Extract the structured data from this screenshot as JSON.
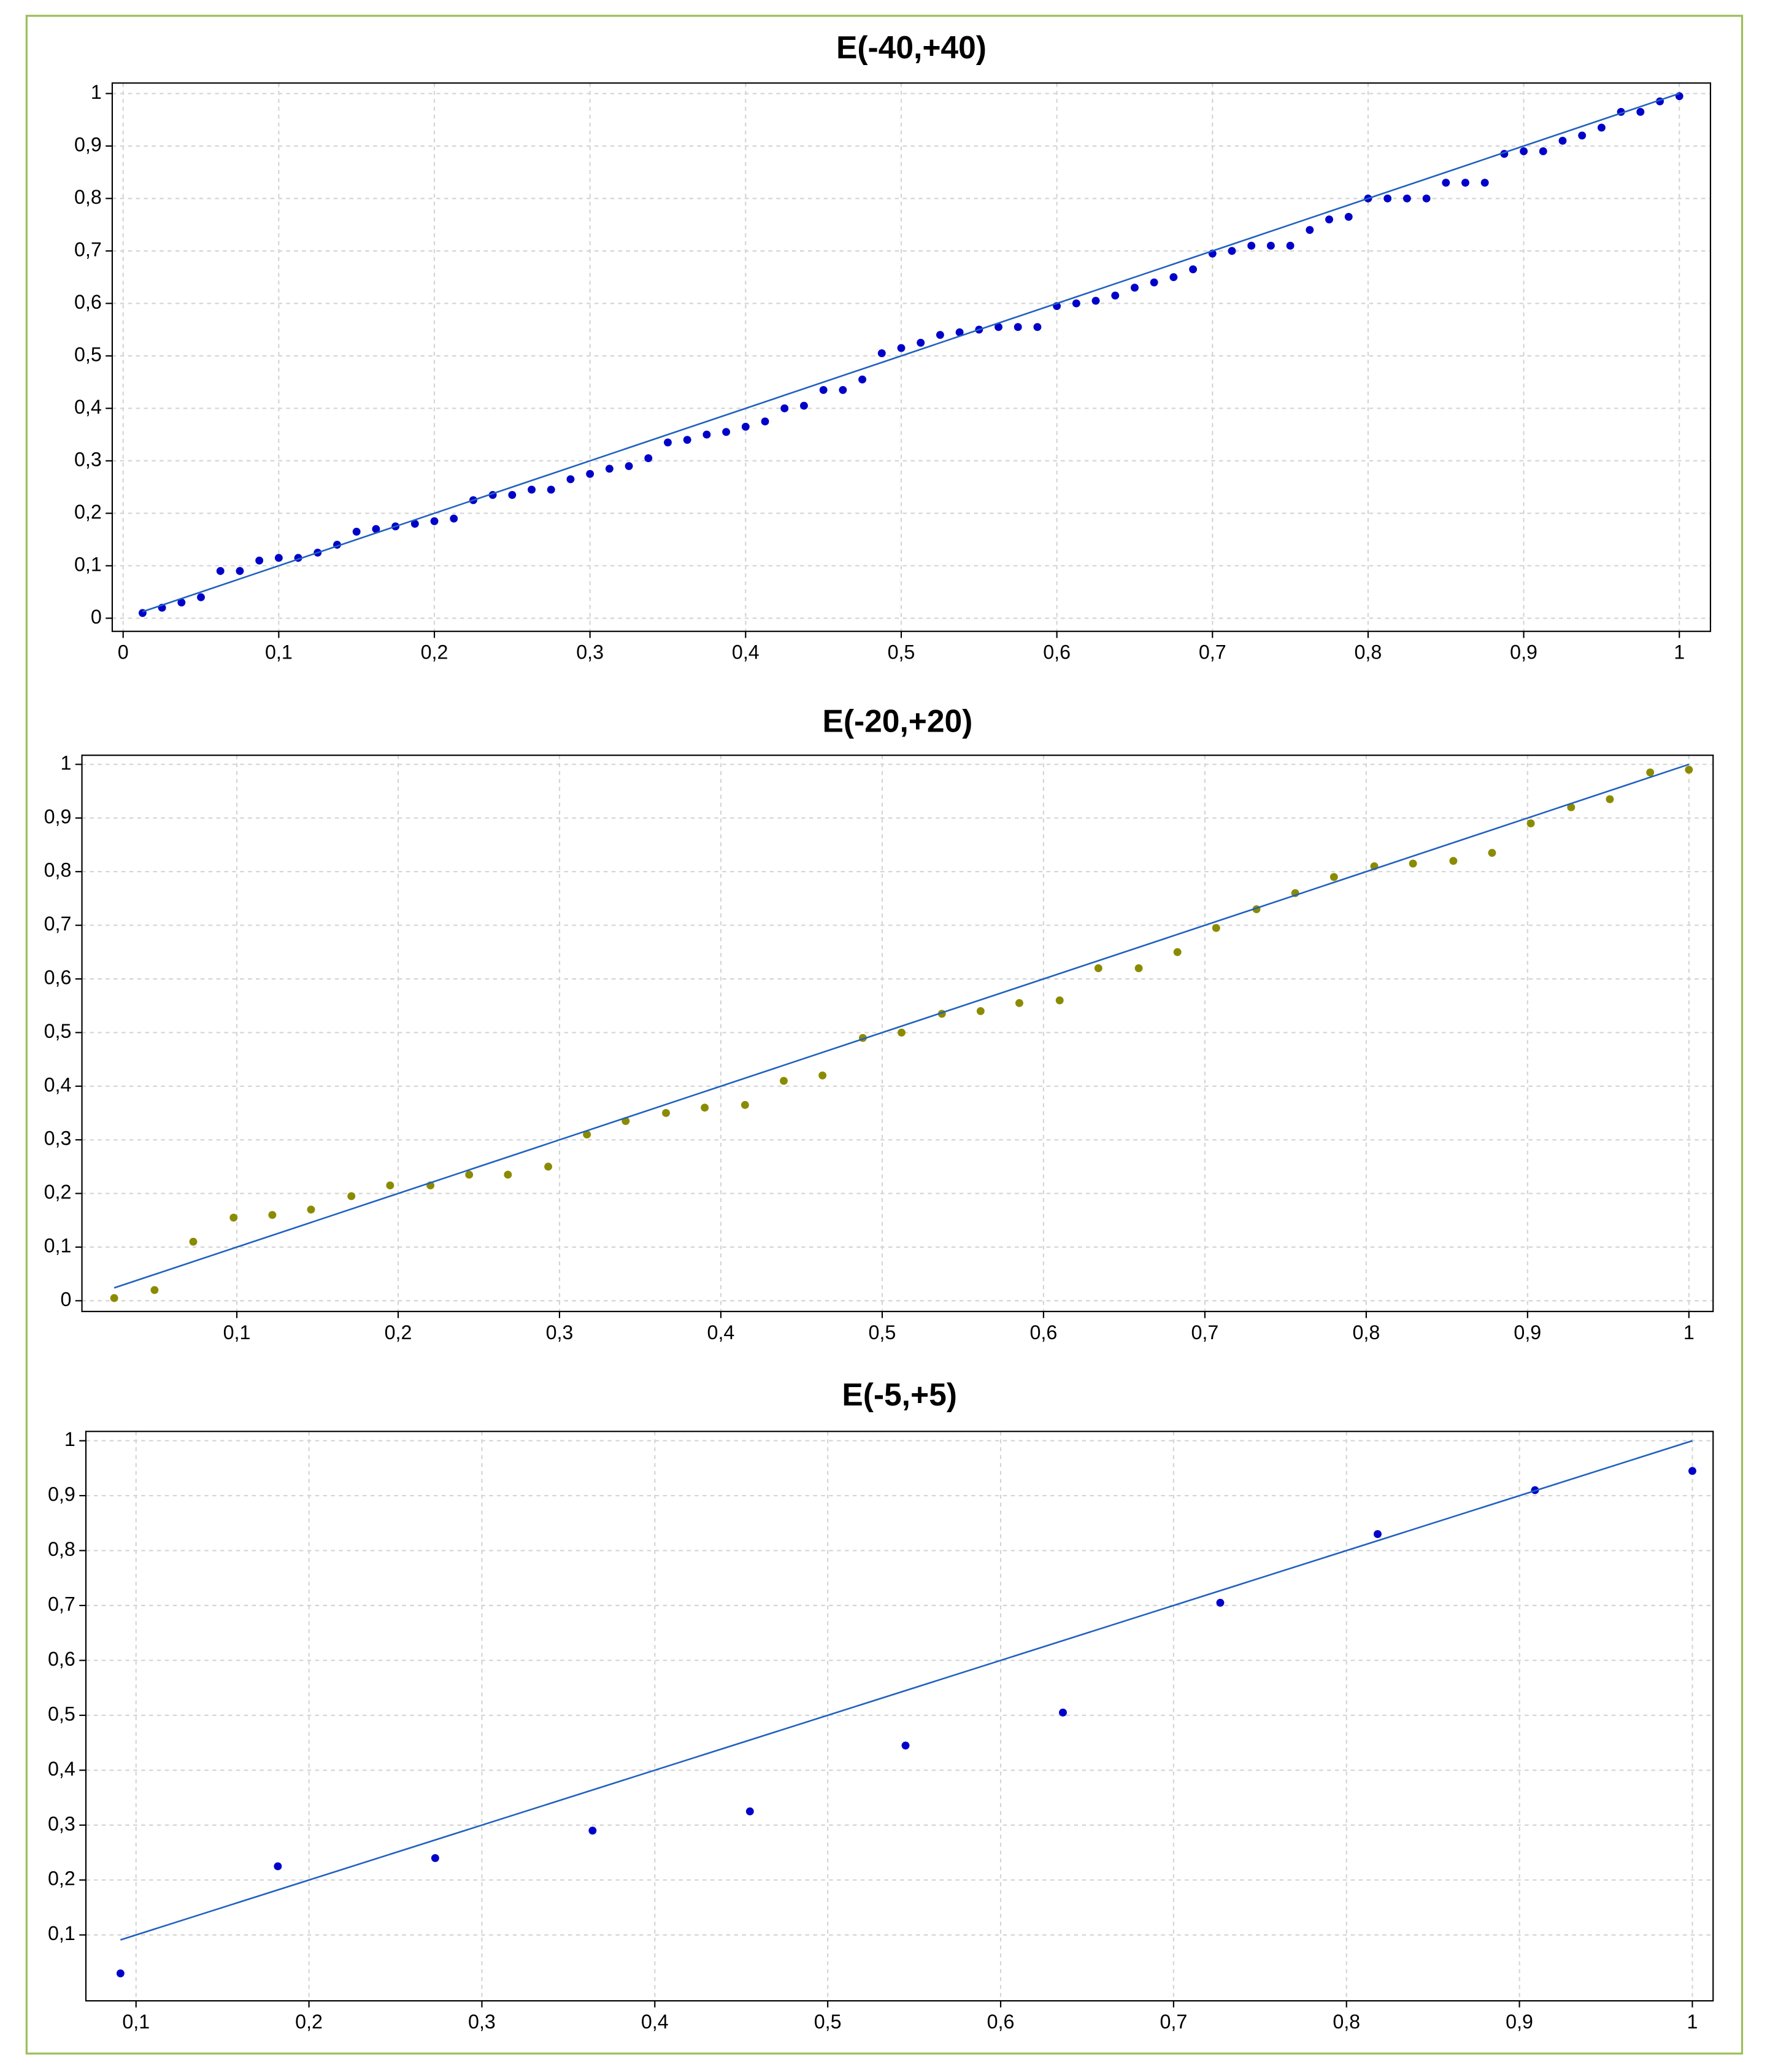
{
  "chart_data": [
    {
      "type": "scatter",
      "title": "E(-40,+40)",
      "xlim": [
        -0.007,
        1.02
      ],
      "ylim": [
        -0.025,
        1.02
      ],
      "xticks": [
        0,
        {
          "value": 0.1,
          "label": "0,1"
        },
        {
          "value": 0.2,
          "label": "0,2"
        },
        {
          "value": 0.3,
          "label": "0,3"
        },
        {
          "value": 0.4,
          "label": "0,4"
        },
        {
          "value": 0.5,
          "label": "0,5"
        },
        {
          "value": 0.6,
          "label": "0,6"
        },
        {
          "value": 0.7,
          "label": "0,7"
        },
        {
          "value": 0.8,
          "label": "0,8"
        },
        {
          "value": 0.9,
          "label": "0,9"
        },
        1
      ],
      "yticks": [
        0,
        {
          "value": 0.1,
          "label": "0,1"
        },
        {
          "value": 0.2,
          "label": "0,2"
        },
        {
          "value": 0.3,
          "label": "0,3"
        },
        {
          "value": 0.4,
          "label": "0,4"
        },
        {
          "value": 0.5,
          "label": "0,5"
        },
        {
          "value": 0.6,
          "label": "0,6"
        },
        {
          "value": 0.7,
          "label": "0,7"
        },
        {
          "value": 0.8,
          "label": "0,8"
        },
        {
          "value": 0.9,
          "label": "0,9"
        },
        1
      ],
      "grid": true,
      "series": [
        {
          "color": "#0000c8",
          "marker": "dot",
          "x": [
            0.0125,
            0.025,
            0.0375,
            0.05,
            0.0625,
            0.075,
            0.0875,
            0.1,
            0.1125,
            0.125,
            0.1375,
            0.15,
            0.1625,
            0.175,
            0.1875,
            0.2,
            0.2125,
            0.225,
            0.2375,
            0.25,
            0.2625,
            0.275,
            0.2875,
            0.3,
            0.3125,
            0.325,
            0.3375,
            0.35,
            0.3625,
            0.375,
            0.3875,
            0.4,
            0.4125,
            0.425,
            0.4375,
            0.45,
            0.4625,
            0.475,
            0.4875,
            0.5,
            0.5125,
            0.525,
            0.5375,
            0.55,
            0.5625,
            0.575,
            0.5875,
            0.6,
            0.6125,
            0.625,
            0.6375,
            0.65,
            0.6625,
            0.675,
            0.6875,
            0.7,
            0.7125,
            0.725,
            0.7375,
            0.75,
            0.7625,
            0.775,
            0.7875,
            0.8,
            0.8125,
            0.825,
            0.8375,
            0.85,
            0.8625,
            0.875,
            0.8875,
            0.9,
            0.9125,
            0.925,
            0.9375,
            0.95,
            0.9625,
            0.975,
            0.9875,
            1
          ],
          "values": [
            0.01,
            0.02,
            0.03,
            0.04,
            0.09,
            0.09,
            0.11,
            0.115,
            0.115,
            0.125,
            0.14,
            0.165,
            0.17,
            0.175,
            0.18,
            0.185,
            0.19,
            0.225,
            0.235,
            0.235,
            0.245,
            0.245,
            0.265,
            0.275,
            0.285,
            0.29,
            0.305,
            0.335,
            0.34,
            0.35,
            0.355,
            0.365,
            0.375,
            0.4,
            0.405,
            0.435,
            0.435,
            0.455,
            0.505,
            0.515,
            0.525,
            0.54,
            0.545,
            0.55,
            0.555,
            0.555,
            0.555,
            0.595,
            0.6,
            0.605,
            0.615,
            0.63,
            0.64,
            0.65,
            0.665,
            0.695,
            0.7,
            0.71,
            0.71,
            0.71,
            0.74,
            0.76,
            0.765,
            0.8,
            0.8,
            0.8,
            0.8,
            0.83,
            0.83,
            0.83,
            0.885,
            0.89,
            0.89,
            0.91,
            0.92,
            0.935,
            0.965,
            0.965,
            0.985,
            0.995
          ]
        },
        {
          "color": "#2060c0",
          "marker": "line",
          "x": [
            0.0125,
            1
          ],
          "values": [
            0.0125,
            1
          ]
        }
      ]
    },
    {
      "type": "scatter",
      "title": "E(-20,+20)",
      "xlim": [
        0.004,
        1.015
      ],
      "ylim": [
        -0.02,
        1.017
      ],
      "xticks": [
        {
          "value": 0.1,
          "label": "0,1"
        },
        {
          "value": 0.2,
          "label": "0,2"
        },
        {
          "value": 0.3,
          "label": "0,3"
        },
        {
          "value": 0.4,
          "label": "0,4"
        },
        {
          "value": 0.5,
          "label": "0,5"
        },
        {
          "value": 0.6,
          "label": "0,6"
        },
        {
          "value": 0.7,
          "label": "0,7"
        },
        {
          "value": 0.8,
          "label": "0,8"
        },
        {
          "value": 0.9,
          "label": "0,9"
        },
        1
      ],
      "yticks": [
        0,
        {
          "value": 0.1,
          "label": "0,1"
        },
        {
          "value": 0.2,
          "label": "0,2"
        },
        {
          "value": 0.3,
          "label": "0,3"
        },
        {
          "value": 0.4,
          "label": "0,4"
        },
        {
          "value": 0.5,
          "label": "0,5"
        },
        {
          "value": 0.6,
          "label": "0,6"
        },
        {
          "value": 0.7,
          "label": "0,7"
        },
        {
          "value": 0.8,
          "label": "0,8"
        },
        {
          "value": 0.9,
          "label": "0,9"
        },
        1
      ],
      "grid": true,
      "series": [
        {
          "color": "#8b8b00",
          "marker": "dot",
          "x": [
            0.024,
            0.049,
            0.073,
            0.098,
            0.122,
            0.146,
            0.171,
            0.195,
            0.22,
            0.244,
            0.268,
            0.293,
            0.317,
            0.341,
            0.366,
            0.39,
            0.415,
            0.439,
            0.463,
            0.488,
            0.512,
            0.537,
            0.561,
            0.585,
            0.61,
            0.634,
            0.659,
            0.683,
            0.707,
            0.732,
            0.756,
            0.78,
            0.805,
            0.829,
            0.854,
            0.878,
            0.902,
            0.927,
            0.951,
            0.976,
            1
          ],
          "values": [
            0.005,
            0.02,
            0.11,
            0.155,
            0.16,
            0.17,
            0.195,
            0.215,
            0.215,
            0.235,
            0.235,
            0.25,
            0.31,
            0.335,
            0.35,
            0.36,
            0.365,
            0.41,
            0.42,
            0.49,
            0.5,
            0.535,
            0.54,
            0.555,
            0.56,
            0.62,
            0.62,
            0.65,
            0.695,
            0.73,
            0.76,
            0.79,
            0.81,
            0.815,
            0.82,
            0.835,
            0.89,
            0.92,
            0.935,
            0.985,
            0.99
          ]
        },
        {
          "color": "#2060c0",
          "marker": "line",
          "x": [
            0.024,
            1
          ],
          "values": [
            0.024,
            1
          ]
        }
      ]
    },
    {
      "type": "scatter",
      "title": "E(-5,+5)",
      "xlim": [
        0.071,
        1.012
      ],
      "ylim": [
        -0.02,
        1.017
      ],
      "xticks": [
        {
          "value": 0.1,
          "label": "0,1"
        },
        {
          "value": 0.2,
          "label": "0,2"
        },
        {
          "value": 0.3,
          "label": "0,3"
        },
        {
          "value": 0.4,
          "label": "0,4"
        },
        {
          "value": 0.5,
          "label": "0,5"
        },
        {
          "value": 0.6,
          "label": "0,6"
        },
        {
          "value": 0.7,
          "label": "0,7"
        },
        {
          "value": 0.8,
          "label": "0,8"
        },
        {
          "value": 0.9,
          "label": "0,9"
        },
        1
      ],
      "yticks": [
        {
          "value": 0.1,
          "label": "0,1"
        },
        {
          "value": 0.2,
          "label": "0,2"
        },
        {
          "value": 0.3,
          "label": "0,3"
        },
        {
          "value": 0.4,
          "label": "0,4"
        },
        {
          "value": 0.5,
          "label": "0,5"
        },
        {
          "value": 0.6,
          "label": "0,6"
        },
        {
          "value": 0.7,
          "label": "0,7"
        },
        {
          "value": 0.8,
          "label": "0,8"
        },
        {
          "value": 0.9,
          "label": "0,9"
        },
        1
      ],
      "grid": true,
      "series": [
        {
          "color": "#0000c8",
          "marker": "dot",
          "x": [
            0.091,
            0.182,
            0.273,
            0.364,
            0.455,
            0.545,
            0.636,
            0.727,
            0.818,
            0.909,
            1
          ],
          "values": [
            0.03,
            0.225,
            0.24,
            0.29,
            0.325,
            0.445,
            0.505,
            0.705,
            0.83,
            0.91,
            0.945
          ]
        },
        {
          "color": "#2060c0",
          "marker": "line",
          "x": [
            0.091,
            1
          ],
          "values": [
            0.091,
            1
          ]
        }
      ]
    }
  ]
}
